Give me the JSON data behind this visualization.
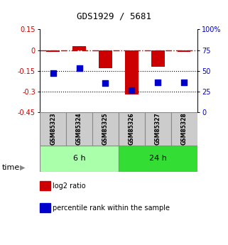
{
  "title": "GDS1929 / 5681",
  "samples": [
    "GSM85323",
    "GSM85324",
    "GSM85325",
    "GSM85326",
    "GSM85327",
    "GSM85328"
  ],
  "log2_ratio": [
    -0.01,
    0.03,
    -0.13,
    -0.32,
    -0.12,
    -0.01
  ],
  "percentile_rank": [
    47,
    53,
    35,
    27,
    36,
    36
  ],
  "groups": [
    {
      "label": "6 h",
      "indices": [
        0,
        1,
        2
      ],
      "color": "#aaffaa"
    },
    {
      "label": "24 h",
      "indices": [
        3,
        4,
        5
      ],
      "color": "#33dd33"
    }
  ],
  "left_ylim": [
    -0.45,
    0.15
  ],
  "right_ylim": [
    0,
    100
  ],
  "left_yticks": [
    -0.45,
    -0.3,
    -0.15,
    0.0,
    0.15
  ],
  "right_yticks": [
    0,
    25,
    50,
    75,
    100
  ],
  "left_ytick_labels": [
    "-0.45",
    "-0.3",
    "-0.15",
    "0",
    "0.15"
  ],
  "right_ytick_labels": [
    "0",
    "25",
    "50",
    "75",
    "100%"
  ],
  "hlines": [
    -0.15,
    -0.3
  ],
  "zero_line": 0.0,
  "bar_color": "#cc0000",
  "dot_color": "#0000cc",
  "bar_width": 0.5,
  "dot_size": 35,
  "legend_items": [
    {
      "label": "log2 ratio",
      "color": "#cc0000"
    },
    {
      "label": "percentile rank within the sample",
      "color": "#0000cc"
    }
  ],
  "time_label": "time",
  "fig_width": 3.21,
  "fig_height": 3.45,
  "dpi": 100
}
